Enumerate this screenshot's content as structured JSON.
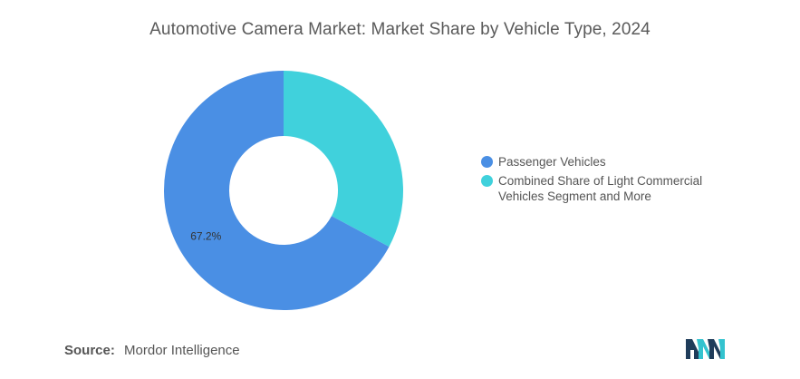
{
  "title": "Automotive Camera Market: Market Share by Vehicle Type, 2024",
  "chart_data": {
    "type": "pie",
    "donut": true,
    "title": "Automotive Camera Market: Market Share by Vehicle Type, 2024",
    "categories": [
      "Passenger Vehicles",
      "Combined Share of Light Commercial Vehicles Segment and More"
    ],
    "values": [
      67.2,
      32.8
    ],
    "colors": [
      "#4a8fe4",
      "#40d1dc"
    ],
    "data_labels": [
      "67.2%",
      ""
    ],
    "legend_position": "right"
  },
  "legend": {
    "items": [
      {
        "label": "Passenger Vehicles",
        "color": "#4a8fe4"
      },
      {
        "label": "Combined Share of Light Commercial Vehicles Segment and More",
        "color": "#40d1dc"
      }
    ]
  },
  "source": {
    "label": "Source:",
    "text": "Mordor Intelligence"
  },
  "logo": {
    "icon": "mordor-intelligence-logo-icon",
    "colors": [
      "#1f3c5a",
      "#34c3cf"
    ]
  }
}
